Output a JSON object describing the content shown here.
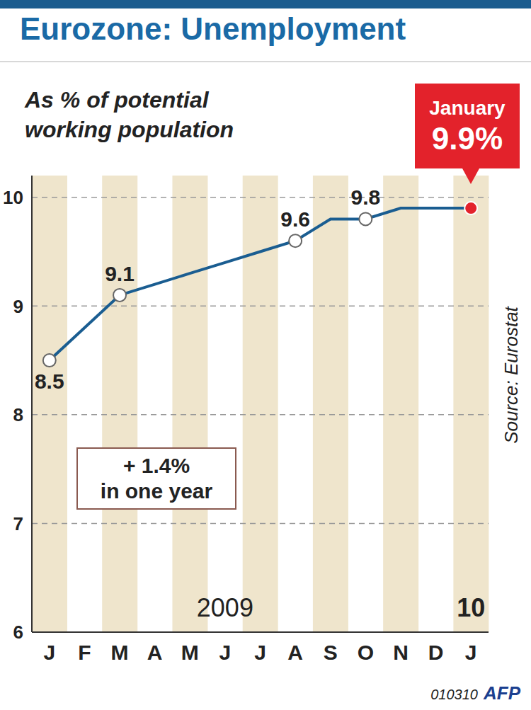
{
  "chart_data": {
    "type": "line",
    "title": "Eurozone: Unemployment",
    "subtitle": "As % of potential working population",
    "categories": [
      "J",
      "F",
      "M",
      "A",
      "M",
      "J",
      "J",
      "A",
      "S",
      "O",
      "N",
      "D",
      "J"
    ],
    "values": [
      8.5,
      8.8,
      9.1,
      9.2,
      9.3,
      9.4,
      9.5,
      9.6,
      9.8,
      9.8,
      9.9,
      9.9,
      9.9
    ],
    "value_labels": [
      "8.5",
      null,
      "9.1",
      null,
      null,
      null,
      null,
      "9.6",
      null,
      "9.8",
      null,
      null,
      null
    ],
    "color": "#1a5d91",
    "marker": "circle",
    "ylim": [
      6,
      10.2
    ],
    "yticks": [
      6,
      7,
      8,
      9,
      10
    ],
    "grid": true,
    "year_labels": [
      "2009",
      "10"
    ],
    "callout": {
      "label": "January",
      "value_label": "9.9%",
      "color": "#e3222b"
    },
    "annotation": [
      "+ 1.4%",
      "in one year"
    ],
    "source": "Source: Eurostat",
    "credit": "010310",
    "logo": "AFP"
  }
}
